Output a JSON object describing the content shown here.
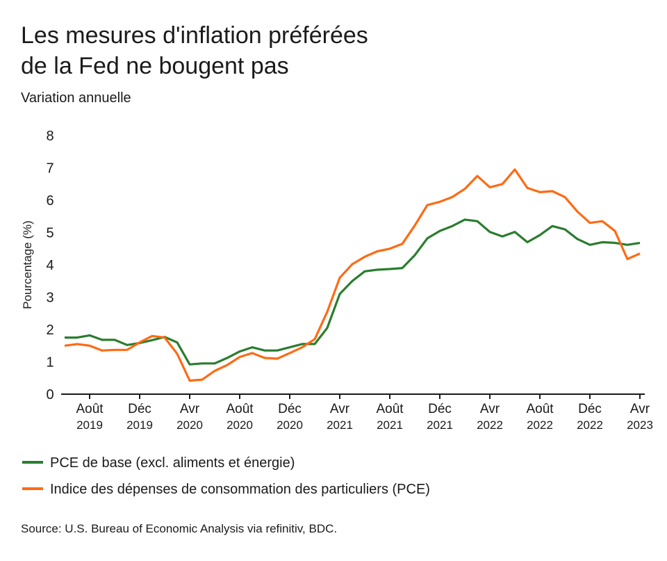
{
  "chart_data": {
    "type": "line",
    "title": [
      "Les mesures d'inflation préférées",
      "de la Fed ne bougent pas"
    ],
    "subtitle": "Variation annuelle",
    "y_label": "Pourcentage (%)",
    "source": "Source: U.S. Bureau of Economic Analysis via refinitiv, BDC.",
    "x": [
      "2019-06",
      "2019-07",
      "2019-08",
      "2019-09",
      "2019-10",
      "2019-11",
      "2019-12",
      "2020-01",
      "2020-02",
      "2020-03",
      "2020-04",
      "2020-05",
      "2020-06",
      "2020-07",
      "2020-08",
      "2020-09",
      "2020-10",
      "2020-11",
      "2020-12",
      "2021-01",
      "2021-02",
      "2021-03",
      "2021-04",
      "2021-05",
      "2021-06",
      "2021-07",
      "2021-08",
      "2021-09",
      "2021-10",
      "2021-11",
      "2021-12",
      "2022-01",
      "2022-02",
      "2022-03",
      "2022-04",
      "2022-05",
      "2022-06",
      "2022-07",
      "2022-08",
      "2022-09",
      "2022-10",
      "2022-11",
      "2022-12",
      "2023-01",
      "2023-02",
      "2023-03",
      "2023-04"
    ],
    "xticks": [
      {
        "value": "2019-08",
        "label": "Août",
        "sublabel": "2019"
      },
      {
        "value": "2019-12",
        "label": "Déc",
        "sublabel": "2019"
      },
      {
        "value": "2020-04",
        "label": "Avr",
        "sublabel": "2020"
      },
      {
        "value": "2020-08",
        "label": "Août",
        "sublabel": "2020"
      },
      {
        "value": "2020-12",
        "label": "Déc",
        "sublabel": "2020"
      },
      {
        "value": "2021-04",
        "label": "Avr",
        "sublabel": "2021"
      },
      {
        "value": "2021-08",
        "label": "Août",
        "sublabel": "2021"
      },
      {
        "value": "2021-12",
        "label": "Déc",
        "sublabel": "2021"
      },
      {
        "value": "2022-04",
        "label": "Avr",
        "sublabel": "2022"
      },
      {
        "value": "2022-08",
        "label": "Août",
        "sublabel": "2022"
      },
      {
        "value": "2022-12",
        "label": "Déc",
        "sublabel": "2022"
      },
      {
        "value": "2023-04",
        "label": "Avr",
        "sublabel": "2023"
      }
    ],
    "ylim": [
      0,
      8
    ],
    "yticks": [
      0,
      1,
      2,
      3,
      4,
      5,
      6,
      7,
      8
    ],
    "grid": false,
    "series": [
      {
        "name": "PCE de base (excl. aliments et énergie)",
        "color": "#2a7d2e",
        "values": [
          1.75,
          1.75,
          1.82,
          1.68,
          1.68,
          1.52,
          1.58,
          1.67,
          1.77,
          1.6,
          0.92,
          0.95,
          0.95,
          1.12,
          1.32,
          1.45,
          1.35,
          1.35,
          1.45,
          1.55,
          1.55,
          2.05,
          3.1,
          3.5,
          3.8,
          3.85,
          3.87,
          3.9,
          4.3,
          4.82,
          5.05,
          5.2,
          5.4,
          5.35,
          5.02,
          4.88,
          5.02,
          4.7,
          4.92,
          5.2,
          5.1,
          4.8,
          4.62,
          4.7,
          4.68,
          4.62,
          4.68
        ]
      },
      {
        "name": "Indice des dépenses de consommation des particuliers (PCE)",
        "color": "#ff6a13",
        "values": [
          1.5,
          1.55,
          1.5,
          1.35,
          1.37,
          1.37,
          1.6,
          1.8,
          1.75,
          1.25,
          0.42,
          0.45,
          0.72,
          0.9,
          1.15,
          1.27,
          1.12,
          1.1,
          1.27,
          1.45,
          1.7,
          2.55,
          3.6,
          4.02,
          4.25,
          4.42,
          4.5,
          4.65,
          5.22,
          5.85,
          5.95,
          6.1,
          6.35,
          6.75,
          6.4,
          6.5,
          6.95,
          6.38,
          6.25,
          6.28,
          6.1,
          5.65,
          5.3,
          5.35,
          5.05,
          4.18,
          4.35
        ]
      }
    ]
  }
}
